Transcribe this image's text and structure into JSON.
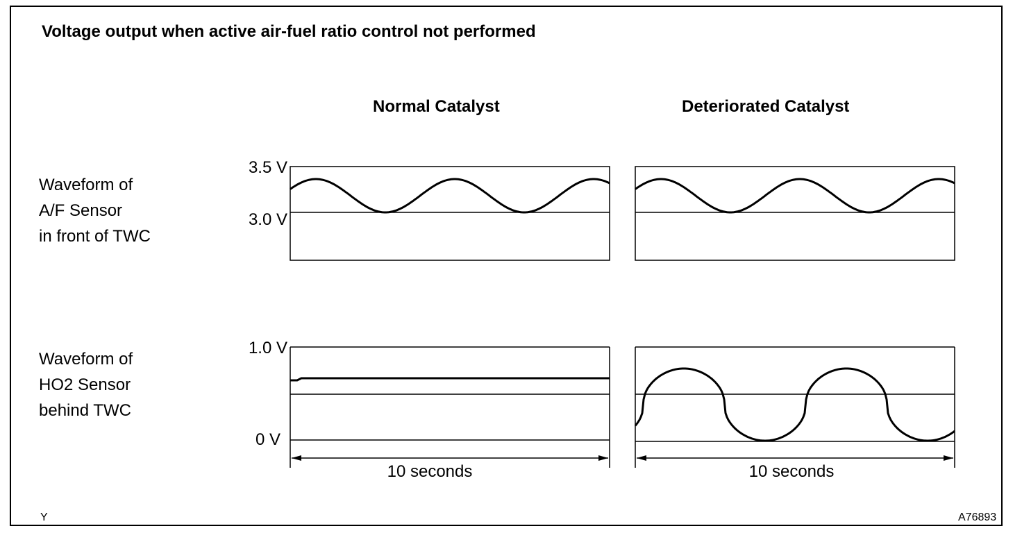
{
  "title": "Voltage output when active air-fuel ratio control not performed",
  "columns": {
    "normal": "Normal Catalyst",
    "deteriorated": "Deteriorated Catalyst"
  },
  "rows": {
    "af": {
      "label_lines": [
        "Waveform of",
        "A/F Sensor",
        "in front of TWC"
      ],
      "y_top_label": "3.5 V",
      "y_ref_label": "3.0 V"
    },
    "ho2": {
      "label_lines": [
        "Waveform of",
        "HO2 Sensor",
        "behind TWC"
      ],
      "y_top_label": "1.0 V",
      "y_bottom_label": "0 V"
    }
  },
  "time_span": {
    "normal": "10 seconds",
    "deteriorated": "10 seconds"
  },
  "corner_left": "Y",
  "corner_right": "A76893",
  "colors": {
    "line": "#000000",
    "background": "#ffffff"
  }
}
